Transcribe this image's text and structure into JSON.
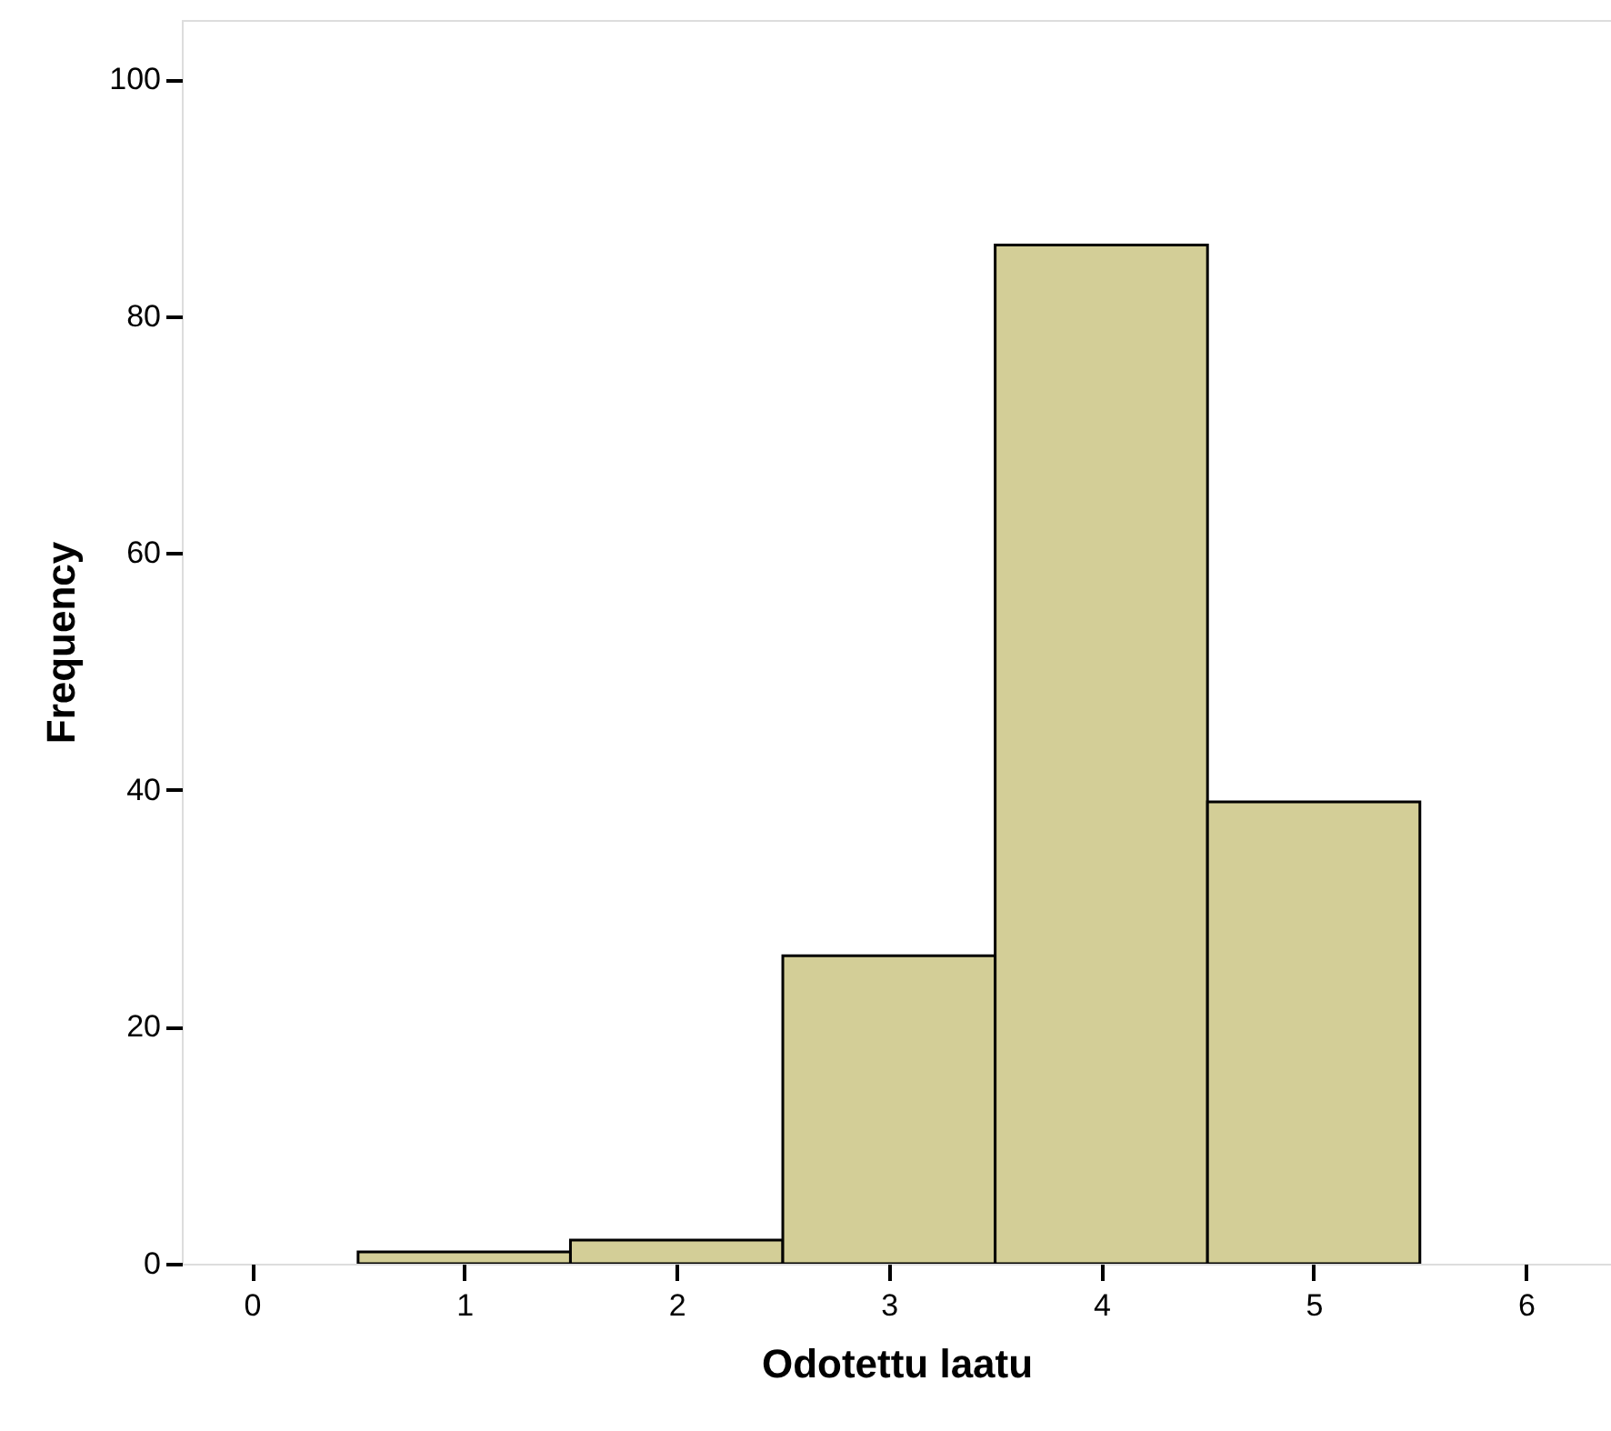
{
  "chart_data": {
    "type": "histogram",
    "xlabel": "Odotettu laatu",
    "ylabel": "Frequency",
    "bins": [
      0.5,
      1.5,
      2.5,
      3.5,
      4.5,
      5.5
    ],
    "values": [
      1,
      2,
      26,
      86,
      39
    ],
    "color": "#d3ce97",
    "xlim": [
      -0.33,
      6.4
    ],
    "ylim": [
      0,
      105
    ],
    "xticks": [
      0,
      1,
      2,
      3,
      4,
      5,
      6
    ],
    "yticks": [
      0,
      20,
      40,
      60,
      80,
      100
    ],
    "grid": false
  }
}
